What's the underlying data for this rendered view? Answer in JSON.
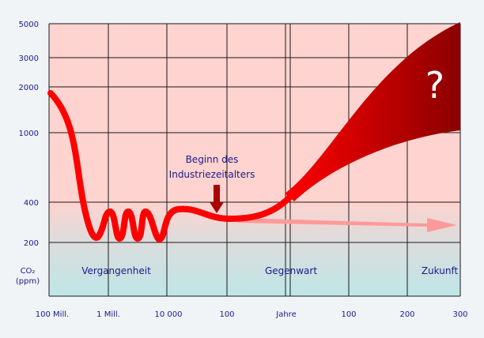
{
  "y_axis": {
    "label": "CO₂",
    "unit": "(ppm)",
    "ticks": [
      "5000",
      "3000",
      "2000",
      "1000",
      "400",
      "200"
    ]
  },
  "x_axis": {
    "ticks": [
      "100 Mill.",
      "1 Mill.",
      "10 000",
      "100",
      "Jahre",
      "100",
      "200",
      "300"
    ]
  },
  "annotation": {
    "line1": "Beginn des",
    "line2": "Industriezeitalters"
  },
  "eras": [
    "Vergangenheit",
    "Gegenwart",
    "Zukunft"
  ],
  "future_mark": "?"
}
